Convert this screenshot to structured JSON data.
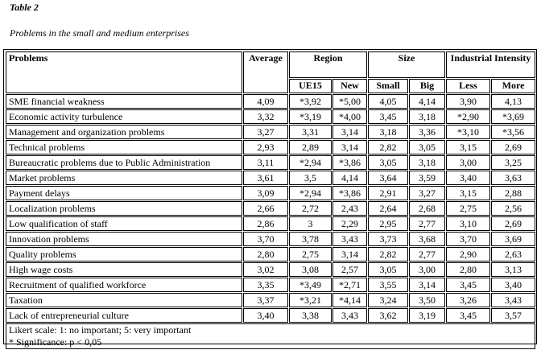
{
  "table_label": "Table 2",
  "caption": "Problems in the small and medium enterprises",
  "headers": {
    "problems": "Problems",
    "average": "Average",
    "region": "Region",
    "size": "Size",
    "industrial": "Industrial Intensity",
    "ue15": "UE15",
    "new": "New",
    "small": "Small",
    "big": "Big",
    "less": "Less",
    "more": "More"
  },
  "rows": [
    {
      "problem": "SME financial weakness",
      "average": "4,09",
      "ue15": "*3,92",
      "new": "*5,00",
      "small": "4,05",
      "big": "4,14",
      "less": "3,90",
      "more": "4,13"
    },
    {
      "problem": "Economic activity turbulence",
      "average": "3,32",
      "ue15": "*3,19",
      "new": "*4,00",
      "small": "3,45",
      "big": "3,18",
      "less": "*2,90",
      "more": "*3,69"
    },
    {
      "problem": "Management and organization problems",
      "average": "3,27",
      "ue15": "3,31",
      "new": "3,14",
      "small": "3,18",
      "big": "3,36",
      "less": "*3,10",
      "more": "*3,56"
    },
    {
      "problem": "Technical problems",
      "average": "2,93",
      "ue15": "2,89",
      "new": "3,14",
      "small": "2,82",
      "big": "3,05",
      "less": "3,15",
      "more": "2,69"
    },
    {
      "problem": "Bureaucratic problems due to Public Administration",
      "average": "3,11",
      "ue15": "*2,94",
      "new": "*3,86",
      "small": "3,05",
      "big": "3,18",
      "less": "3,00",
      "more": "3,25"
    },
    {
      "problem": "Market problems",
      "average": "3,61",
      "ue15": "3,5",
      "new": "4,14",
      "small": "3,64",
      "big": "3,59",
      "less": "3,40",
      "more": "3,63"
    },
    {
      "problem": "Payment delays",
      "average": "3,09",
      "ue15": "*2,94",
      "new": "*3,86",
      "small": "2,91",
      "big": "3,27",
      "less": "3,15",
      "more": "2,88"
    },
    {
      "problem": "Localization problems",
      "average": "2,66",
      "ue15": "2,72",
      "new": "2,43",
      "small": "2,64",
      "big": "2,68",
      "less": "2,75",
      "more": "2,56"
    },
    {
      "problem": "Low qualification of staff",
      "average": "2,86",
      "ue15": "3",
      "new": "2,29",
      "small": "2,95",
      "big": "2,77",
      "less": "3,10",
      "more": "2,69"
    },
    {
      "problem": "Innovation problems",
      "average": "3,70",
      "ue15": "3,78",
      "new": "3,43",
      "small": "3,73",
      "big": "3,68",
      "less": "3,70",
      "more": "3,69"
    },
    {
      "problem": "Quality problems",
      "average": "2,80",
      "ue15": "2,75",
      "new": "3,14",
      "small": "2,82",
      "big": "2,77",
      "less": "2,90",
      "more": "2,63"
    },
    {
      "problem": "High wage costs",
      "average": "3,02",
      "ue15": "3,08",
      "new": "2,57",
      "small": "3,05",
      "big": "3,00",
      "less": "2,80",
      "more": "3,13"
    },
    {
      "problem": "Recruitment of qualified workforce",
      "average": "3,35",
      "ue15": "*3,49",
      "new": "*2,71",
      "small": "3,55",
      "big": "3,14",
      "less": "3,45",
      "more": "3,40"
    },
    {
      "problem": "Taxation",
      "average": "3,37",
      "ue15": "*3,21",
      "new": "*4,14",
      "small": "3,24",
      "big": "3,50",
      "less": "3,26",
      "more": "3,43"
    },
    {
      "problem": "Lack of entrepreneurial culture",
      "average": "3,40",
      "ue15": "3,38",
      "new": "3,43",
      "small": "3,62",
      "big": "3,19",
      "less": "3,45",
      "more": "3,57"
    }
  ],
  "notes": [
    "Likert scale: 1: no important; 5: very important",
    "* Significance: p < 0,05"
  ]
}
